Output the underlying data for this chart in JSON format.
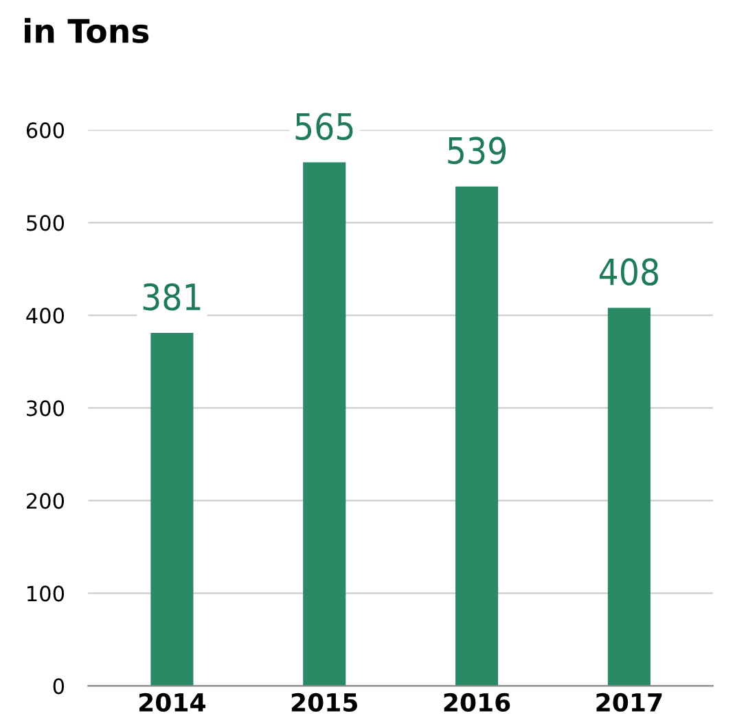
{
  "chart_data": {
    "type": "bar",
    "title": "in Tons",
    "categories": [
      "2014",
      "2015",
      "2016",
      "2017"
    ],
    "values": [
      381,
      565,
      539,
      408
    ],
    "color": "#2a8a66",
    "ylim": [
      0,
      600
    ],
    "yticks": [
      0,
      100,
      200,
      300,
      400,
      500,
      600
    ],
    "grid": "y",
    "data_labels": true
  }
}
